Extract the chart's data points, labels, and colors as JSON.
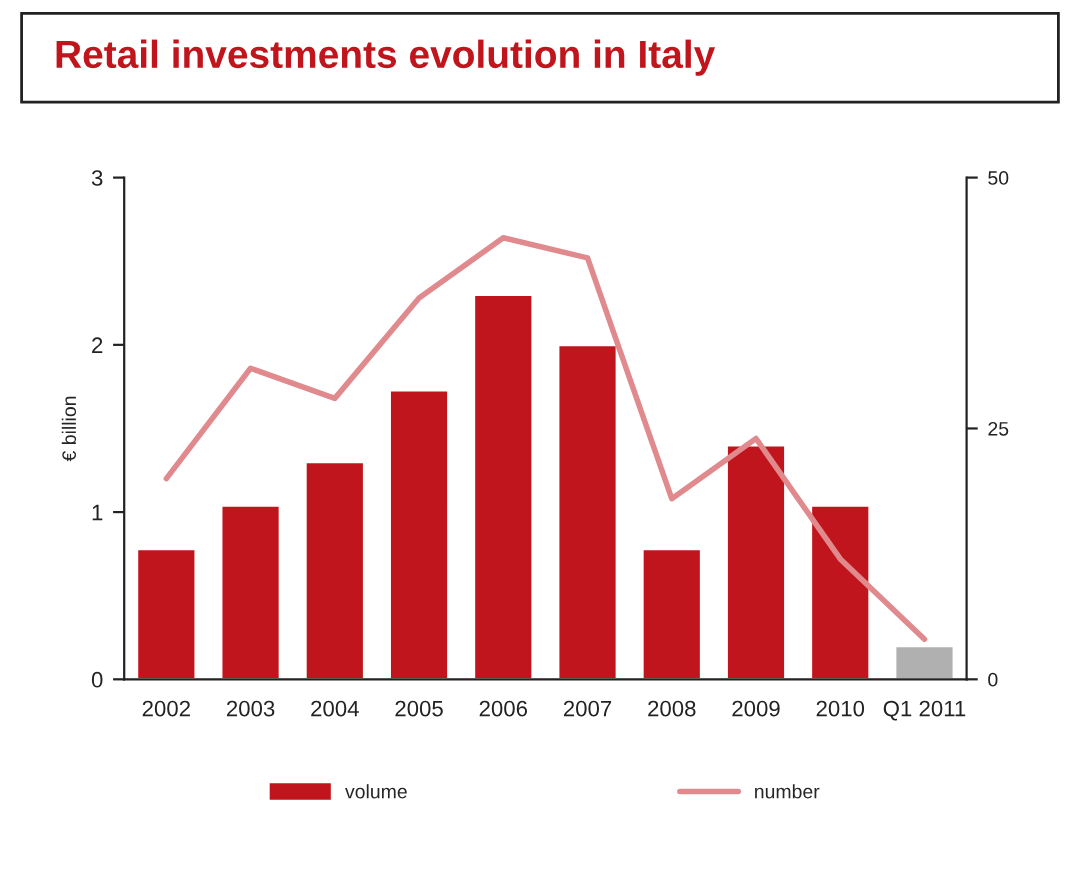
{
  "chart_data": {
    "type": "bar",
    "title": "Retail investments evolution in Italy",
    "ylabel": "€ billion",
    "categories": [
      "2002",
      "2003",
      "2004",
      "2005",
      "2006",
      "2007",
      "2008",
      "2009",
      "2010",
      "Q1 2011"
    ],
    "series": [
      {
        "name": "volume",
        "color": "#c0151c",
        "colors": [
          "#c0151c",
          "#c0151c",
          "#c0151c",
          "#c0151c",
          "#c0151c",
          "#c0151c",
          "#c0151c",
          "#c0151c",
          "#c0151c",
          "#b0b0b0"
        ],
        "values": [
          0.78,
          1.04,
          1.3,
          1.73,
          2.3,
          2.0,
          0.78,
          1.4,
          1.04,
          0.2
        ]
      },
      {
        "name": "number",
        "type": "line",
        "axis": "y2",
        "color": "#e08a8e",
        "values": [
          20,
          31,
          28,
          38,
          44,
          42,
          18,
          24,
          12,
          4
        ]
      }
    ],
    "ylim": [
      0,
      3
    ],
    "yticks": [
      0,
      1,
      2,
      3
    ],
    "y2lim": [
      0,
      50
    ],
    "y2ticks": [
      0,
      25,
      50
    ],
    "grid": false,
    "legend": "bottom",
    "marker": "none",
    "line_style": "solid"
  }
}
